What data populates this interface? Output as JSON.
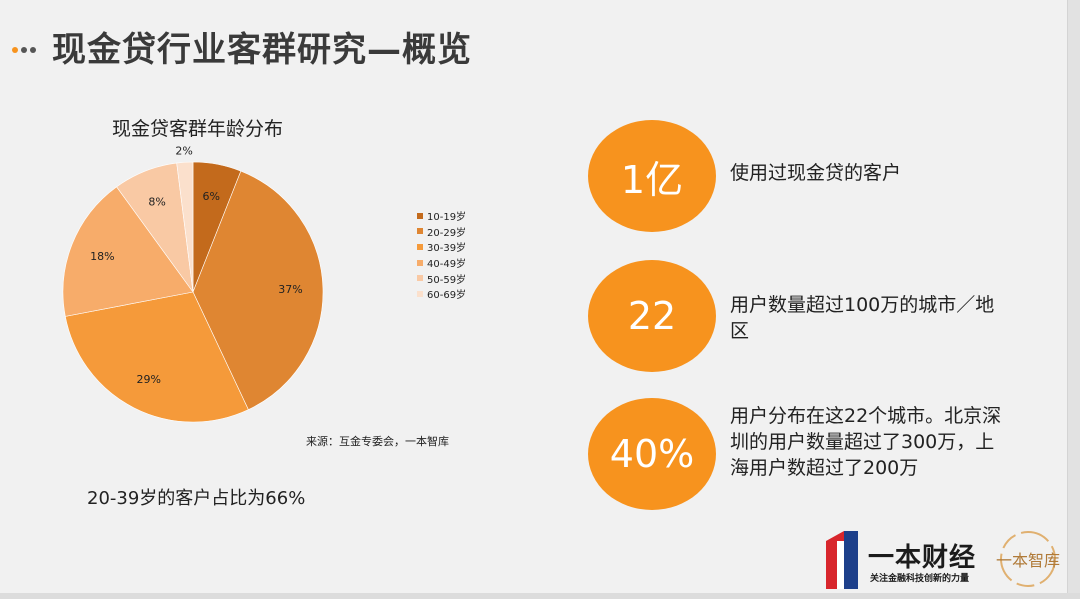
{
  "page": {
    "title": "现金贷行业客群研究—概览"
  },
  "chart_data": {
    "type": "pie",
    "title": "现金贷客群年龄分布",
    "slices": [
      {
        "label": "10-19岁",
        "value": 6,
        "display": "6%",
        "color": "#c36a1c"
      },
      {
        "label": "20-29岁",
        "value": 37,
        "display": "37%",
        "color": "#df8632"
      },
      {
        "label": "30-39岁",
        "value": 29,
        "display": "29%",
        "color": "#f59a3a"
      },
      {
        "label": "40-49岁",
        "value": 18,
        "display": "18%",
        "color": "#f7ac6a"
      },
      {
        "label": "50-59岁",
        "value": 8,
        "display": "8%",
        "color": "#f9c9a4"
      },
      {
        "label": "60-69岁",
        "value": 2,
        "display": "2%",
        "color": "#fbe0cc"
      }
    ],
    "legend_position": "right",
    "source": "来源：互金专委会，一本智库"
  },
  "summary": "20-39岁的客户占比为66%",
  "stats": [
    {
      "value": "1亿",
      "desc": "使用过现金贷的客户"
    },
    {
      "value": "22",
      "desc": "用户数量超过100万的城市／地区"
    },
    {
      "value": "40%",
      "desc": "用户分布在这22个城市。北京深圳的用户数量超过了300万，上海用户数超过了200万"
    }
  ],
  "brand": {
    "name": "一本财经",
    "slogan": "关注金融科技创新的力量",
    "seal_text": "一本智库"
  },
  "colors": {
    "accent": "#f7931e",
    "title": "#3a3a3a"
  }
}
